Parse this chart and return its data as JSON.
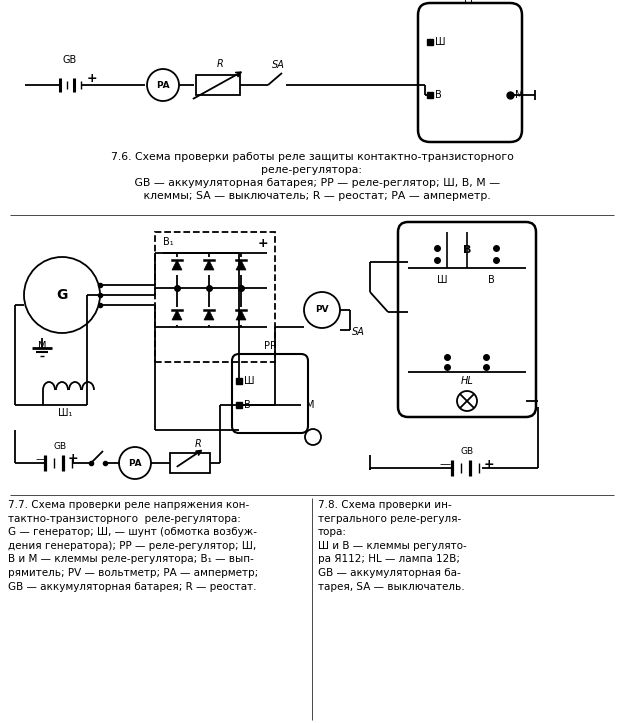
{
  "fig_width": 6.24,
  "fig_height": 7.23,
  "bg_color": "#ffffff",
  "line_color": "#000000",
  "caption_76_line1": "7.6. Схема проверки работы реле защиты контактно-транзисторного",
  "caption_76_line2": "реле-регулятора:",
  "caption_76_line3": "   GB — аккумуляторная батарея; РР — реле-реглятор; Ш, В, М —",
  "caption_76_line4": "   клеммы; SA — выключатель; R — реостат; РА — амперметр.",
  "caption_77": "7.7. Схема проверки реле напряжения кон-\nтактно-транзисторного  реле-регулятора:\nG — генератор; Ш, — шунт (обмотка возбуж-\nдения генератора); РР — реле-регулятор; Ш,\nВ и М — клеммы реле-регулятора; В₁ — вып-\nрямитель; PV — вольтметр; РА — амперметр;\nGB — аккумуляторная батарея; R — реостат.",
  "caption_78": "7.8. Схема проверки ин-\nтегрального реле-регуля-\nтора:\nШ и В — клеммы регулято-\nра Я112; HL — лампа 12В;\nGB — аккумуляторная ба-\nтарея, SA — выключатель."
}
